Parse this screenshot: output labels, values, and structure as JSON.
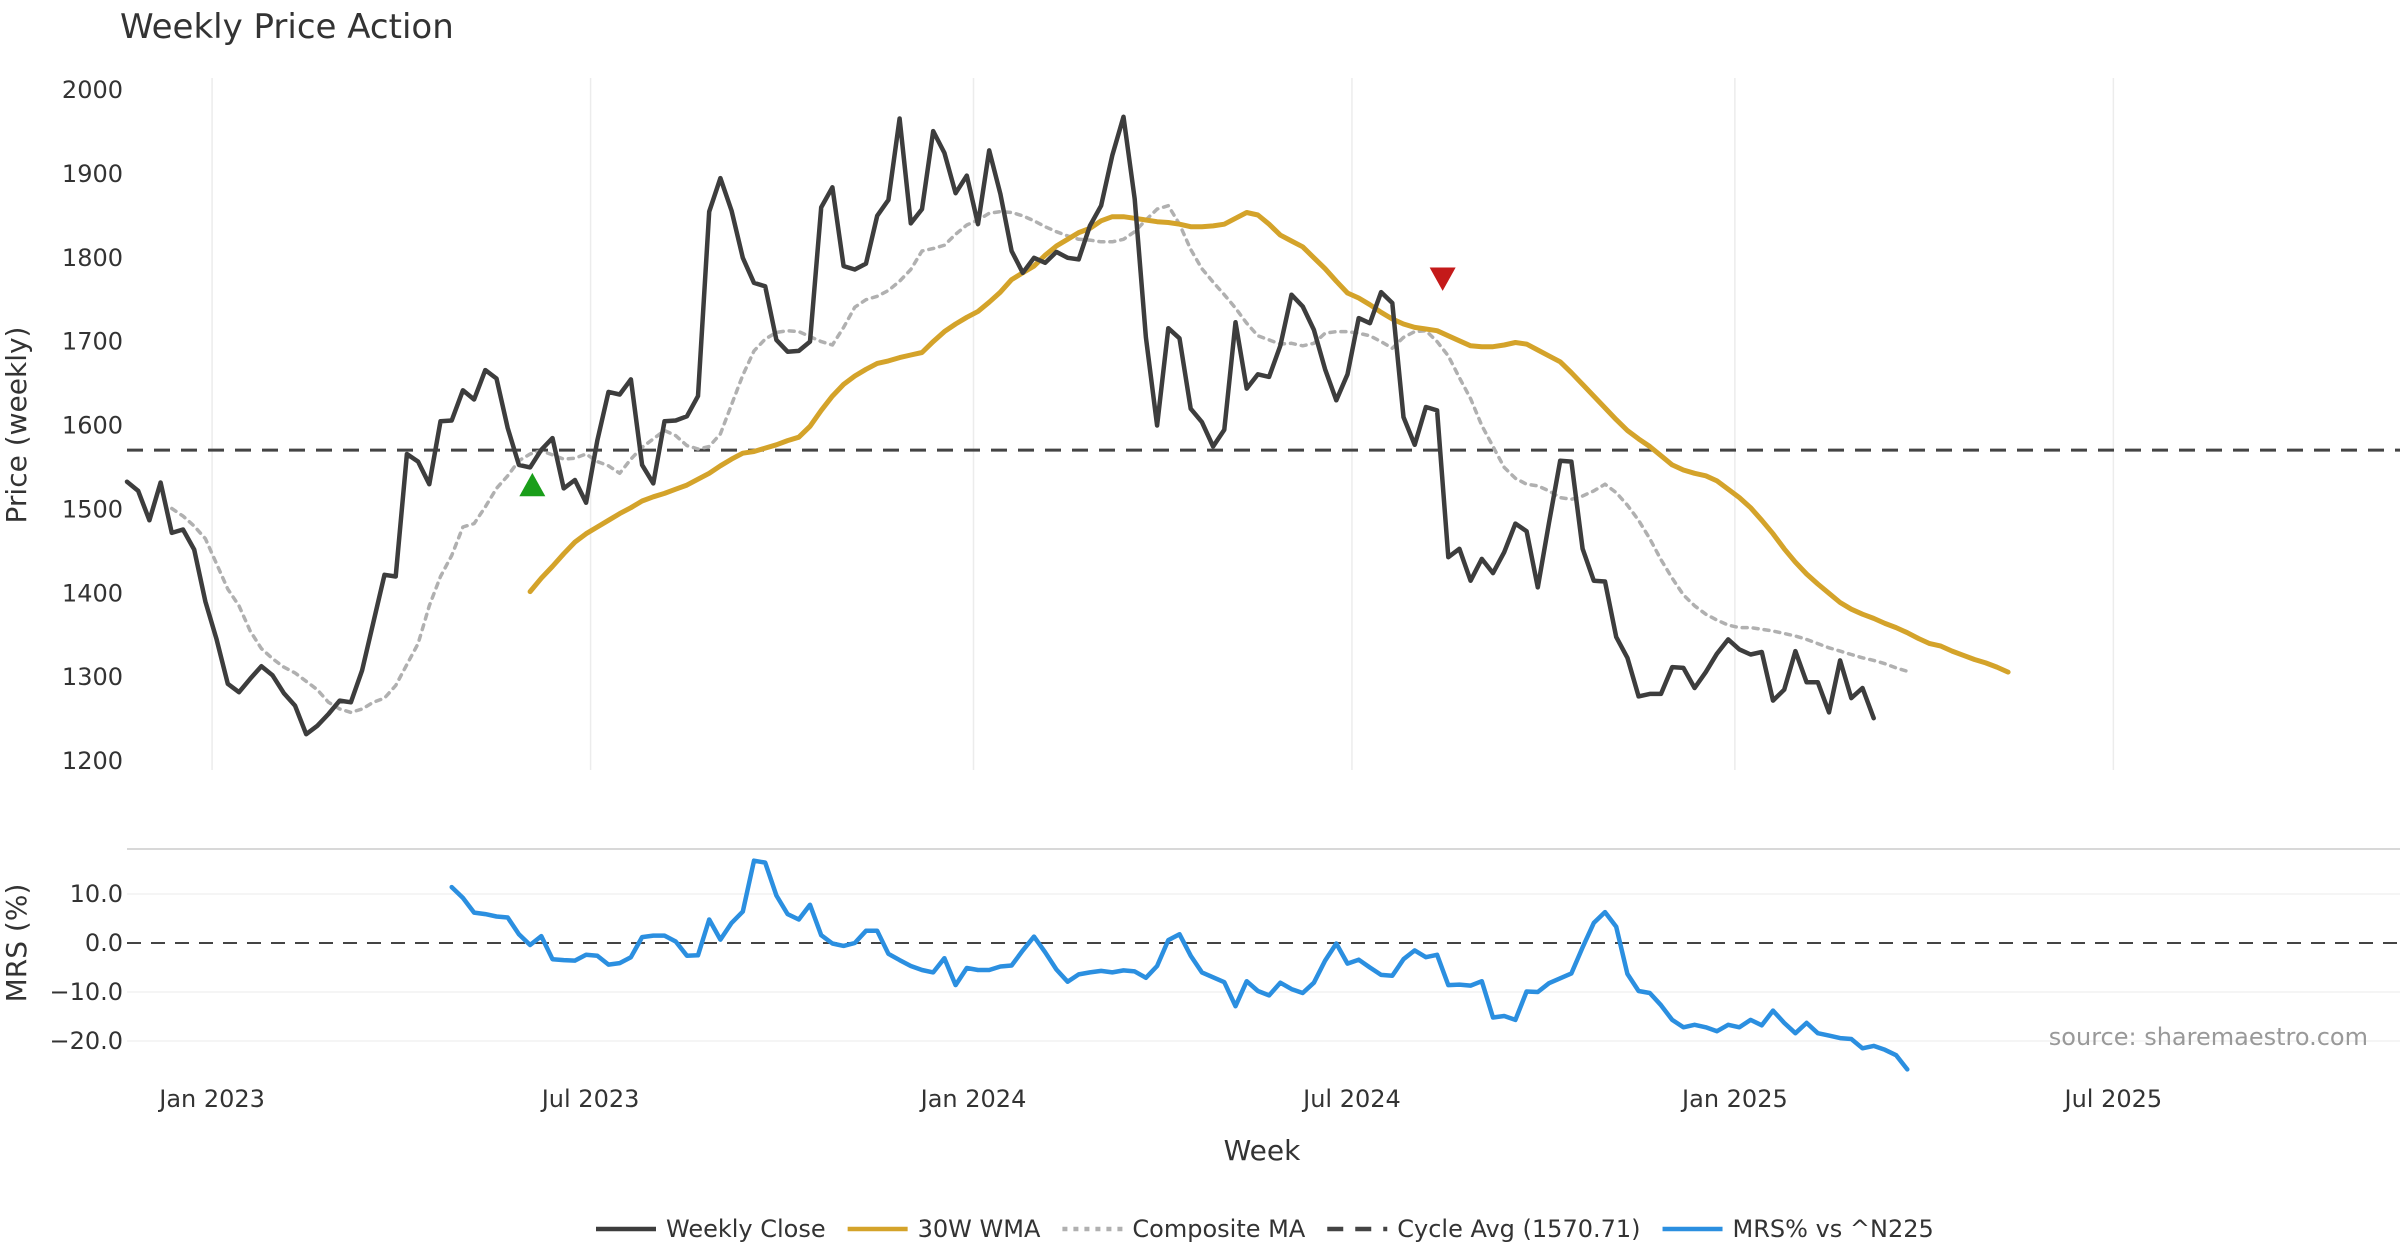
{
  "chart_data": {
    "type": "line",
    "title": "Weekly Price Action",
    "xlabel": "Week",
    "x_ticks": [
      "Jan 2023",
      "Jul 2023",
      "Jan 2024",
      "Jul 2024",
      "Jan 2025",
      "Jul 2025"
    ],
    "x_tick_weeks": [
      7.6,
      41.4,
      75.6,
      109.4,
      143.6,
      177.4
    ],
    "x_range_weeks": [
      0,
      203
    ],
    "price_panel": {
      "ylabel": "Price (weekly)",
      "ylim": [
        1200,
        2000
      ],
      "y_ticks": [
        "1200",
        "1300",
        "1400",
        "1500",
        "1600",
        "1700",
        "1800",
        "1900",
        "2000"
      ],
      "grid": true,
      "series": [
        {
          "name": "Weekly Close",
          "color": "#3d3d3d",
          "style": "solid",
          "start_week": 0,
          "values": [
            1533,
            1522,
            1487,
            1532,
            1472,
            1476,
            1452,
            1390,
            1345,
            1292,
            1282,
            1298,
            1313,
            1302,
            1281,
            1266,
            1232,
            1242,
            1256,
            1272,
            1270,
            1308,
            1365,
            1422,
            1420,
            1566,
            1557,
            1530,
            1605,
            1606,
            1642,
            1631,
            1666,
            1656,
            1597,
            1553,
            1550,
            1571,
            1585,
            1525,
            1535,
            1508,
            1582,
            1640,
            1637,
            1655,
            1553,
            1531,
            1605,
            1606,
            1611,
            1635,
            1855,
            1895,
            1856,
            1800,
            1770,
            1766,
            1702,
            1688,
            1689,
            1700,
            1860,
            1884,
            1790,
            1786,
            1793,
            1850,
            1869,
            1966,
            1841,
            1858,
            1951,
            1925,
            1877,
            1898,
            1840,
            1928,
            1876,
            1808,
            1782,
            1800,
            1794,
            1807,
            1800,
            1798,
            1838,
            1862,
            1922,
            1968,
            1870,
            1705,
            1600,
            1716,
            1704,
            1620,
            1604,
            1575,
            1595,
            1723,
            1644,
            1661,
            1658,
            1695,
            1756,
            1742,
            1714,
            1667,
            1630,
            1661,
            1728,
            1722,
            1759,
            1746,
            1610,
            1577,
            1622,
            1618,
            1443,
            1453,
            1415,
            1441,
            1424,
            1449,
            1483,
            1474,
            1407,
            1484,
            1558,
            1557,
            1453,
            1415,
            1414,
            1348,
            1323,
            1277,
            1280,
            1280,
            1312,
            1311,
            1287,
            1306,
            1328,
            1345,
            1333,
            1327,
            1330,
            1272,
            1285,
            1331,
            1294,
            1294,
            1258,
            1320,
            1275,
            1287,
            1251
          ]
        },
        {
          "name": "30W WMA",
          "color": "#d4a32a",
          "style": "solid",
          "start_week": 36,
          "values": [
            1402,
            1418,
            1432,
            1447,
            1461,
            1471,
            1479,
            1487,
            1495,
            1502,
            1510,
            1515,
            1519,
            1524,
            1529,
            1536,
            1543,
            1552,
            1560,
            1567,
            1569,
            1573,
            1577,
            1582,
            1586,
            1599,
            1618,
            1635,
            1649,
            1659,
            1667,
            1674,
            1677,
            1681,
            1684,
            1687,
            1700,
            1712,
            1721,
            1729,
            1736,
            1747,
            1759,
            1774,
            1782,
            1790,
            1803,
            1814,
            1822,
            1830,
            1835,
            1844,
            1849,
            1849,
            1847,
            1845,
            1843,
            1842,
            1840,
            1837,
            1837,
            1838,
            1840,
            1847,
            1854,
            1851,
            1840,
            1827,
            1820,
            1813,
            1800,
            1787,
            1772,
            1758,
            1752,
            1744,
            1735,
            1727,
            1721,
            1717,
            1715,
            1713,
            1707,
            1701,
            1695,
            1694,
            1694,
            1696,
            1699,
            1697,
            1690,
            1683,
            1676,
            1663,
            1649,
            1635,
            1621,
            1607,
            1594,
            1584,
            1575,
            1564,
            1553,
            1547,
            1543,
            1540,
            1534,
            1524,
            1514,
            1502,
            1487,
            1471,
            1453,
            1437,
            1423,
            1411,
            1400,
            1389,
            1381,
            1375,
            1370,
            1364,
            1359,
            1353,
            1346,
            1340,
            1337,
            1331,
            1326,
            1321,
            1317,
            1312,
            1306
          ]
        },
        {
          "name": "Composite MA",
          "color": "#b0b0b0",
          "style": "dotted",
          "start_week": 4,
          "values": [
            1501,
            1492,
            1480,
            1465,
            1435,
            1405,
            1385,
            1355,
            1334,
            1322,
            1312,
            1305,
            1295,
            1285,
            1270,
            1262,
            1258,
            1262,
            1270,
            1275,
            1290,
            1315,
            1340,
            1385,
            1420,
            1445,
            1479,
            1483,
            1503,
            1525,
            1540,
            1558,
            1566,
            1570,
            1565,
            1560,
            1561,
            1566,
            1557,
            1552,
            1543,
            1560,
            1574,
            1584,
            1594,
            1588,
            1576,
            1572,
            1575,
            1590,
            1625,
            1660,
            1689,
            1703,
            1711,
            1713,
            1712,
            1706,
            1700,
            1696,
            1717,
            1741,
            1750,
            1754,
            1761,
            1772,
            1786,
            1808,
            1811,
            1815,
            1828,
            1839,
            1845,
            1853,
            1855,
            1854,
            1850,
            1844,
            1837,
            1831,
            1826,
            1822,
            1821,
            1819,
            1819,
            1822,
            1831,
            1845,
            1858,
            1862,
            1840,
            1810,
            1787,
            1771,
            1756,
            1740,
            1722,
            1707,
            1702,
            1697,
            1698,
            1695,
            1698,
            1710,
            1712,
            1712,
            1710,
            1707,
            1700,
            1692,
            1705,
            1712,
            1713,
            1700,
            1683,
            1657,
            1632,
            1600,
            1575,
            1550,
            1537,
            1530,
            1528,
            1522,
            1514,
            1512,
            1516,
            1522,
            1530,
            1520,
            1505,
            1487,
            1465,
            1440,
            1418,
            1398,
            1385,
            1375,
            1368,
            1362,
            1359,
            1359,
            1357,
            1355,
            1352,
            1349,
            1345,
            1340,
            1335,
            1331,
            1327,
            1323,
            1320,
            1316,
            1311,
            1307
          ]
        },
        {
          "name": "Cycle Avg (1570.71)",
          "color": "#444444",
          "style": "dashed",
          "value": 1570.71
        }
      ],
      "markers": [
        {
          "type": "buy",
          "shape": "triangle-up",
          "color": "#1a9e1a",
          "week": 36.2,
          "value": 1528
        },
        {
          "type": "sell",
          "shape": "triangle-down",
          "color": "#c41a1a",
          "week": 117.5,
          "value": 1776
        }
      ]
    },
    "mrs_panel": {
      "ylabel": "MRS (%)",
      "ylim": [
        -25,
        20
      ],
      "y_ticks": [
        "10.0",
        "0.0",
        "−10.0",
        "−20.0"
      ],
      "y_tick_values": [
        10,
        0,
        -10,
        -20
      ],
      "zero_line": 0,
      "series": [
        {
          "name": "MRS% vs ^N225",
          "color": "#2b8fe0",
          "style": "solid",
          "start_week": 29,
          "values": [
            11.4,
            9.2,
            6.2,
            5.9,
            5.4,
            5.2,
            1.8,
            -0.4,
            1.4,
            -3.3,
            -3.5,
            -3.6,
            -2.4,
            -2.6,
            -4.4,
            -4.1,
            -2.9,
            1.2,
            1.5,
            1.5,
            0.3,
            -2.6,
            -2.5,
            4.8,
            0.7,
            4.1,
            6.4,
            16.8,
            16.4,
            9.7,
            5.9,
            4.8,
            7.8,
            1.6,
            -0.1,
            -0.6,
            0.0,
            2.5,
            2.5,
            -2.2,
            -3.5,
            -4.7,
            -5.5,
            -6.0,
            -3.1,
            -8.6,
            -5.1,
            -5.5,
            -5.5,
            -4.8,
            -4.6,
            -1.5,
            1.3,
            -1.9,
            -5.4,
            -7.9,
            -6.4,
            -6.0,
            -5.7,
            -6.0,
            -5.6,
            -5.8,
            -7.1,
            -4.7,
            0.6,
            1.8,
            -2.6,
            -6.0,
            -7.0,
            -8.0,
            -12.9,
            -7.8,
            -9.8,
            -10.7,
            -8.1,
            -9.4,
            -10.2,
            -8.1,
            -3.6,
            -0.1,
            -4.2,
            -3.4,
            -5.0,
            -6.5,
            -6.7,
            -3.3,
            -1.5,
            -2.9,
            -2.4,
            -8.6,
            -8.5,
            -8.7,
            -7.8,
            -15.2,
            -14.9,
            -15.7,
            -9.9,
            -10.0,
            -8.2,
            -7.2,
            -6.2,
            -0.9,
            4.1,
            6.3,
            3.3,
            -6.3,
            -9.8,
            -10.2,
            -12.7,
            -15.7,
            -17.2,
            -16.7,
            -17.2,
            -18.0,
            -16.7,
            -17.2,
            -15.7,
            -16.8,
            -13.8,
            -16.3,
            -18.4,
            -16.3,
            -18.4,
            -18.9,
            -19.4,
            -19.6,
            -21.5,
            -21.0,
            -21.8,
            -22.9,
            -25.8
          ]
        }
      ]
    },
    "legend": {
      "placement": "bottom-center",
      "entries": [
        "Weekly Close",
        "30W WMA",
        "Composite MA",
        "Cycle Avg (1570.71)",
        "MRS% vs ^N225"
      ]
    },
    "annotation": "source: sharemaestro.com"
  }
}
